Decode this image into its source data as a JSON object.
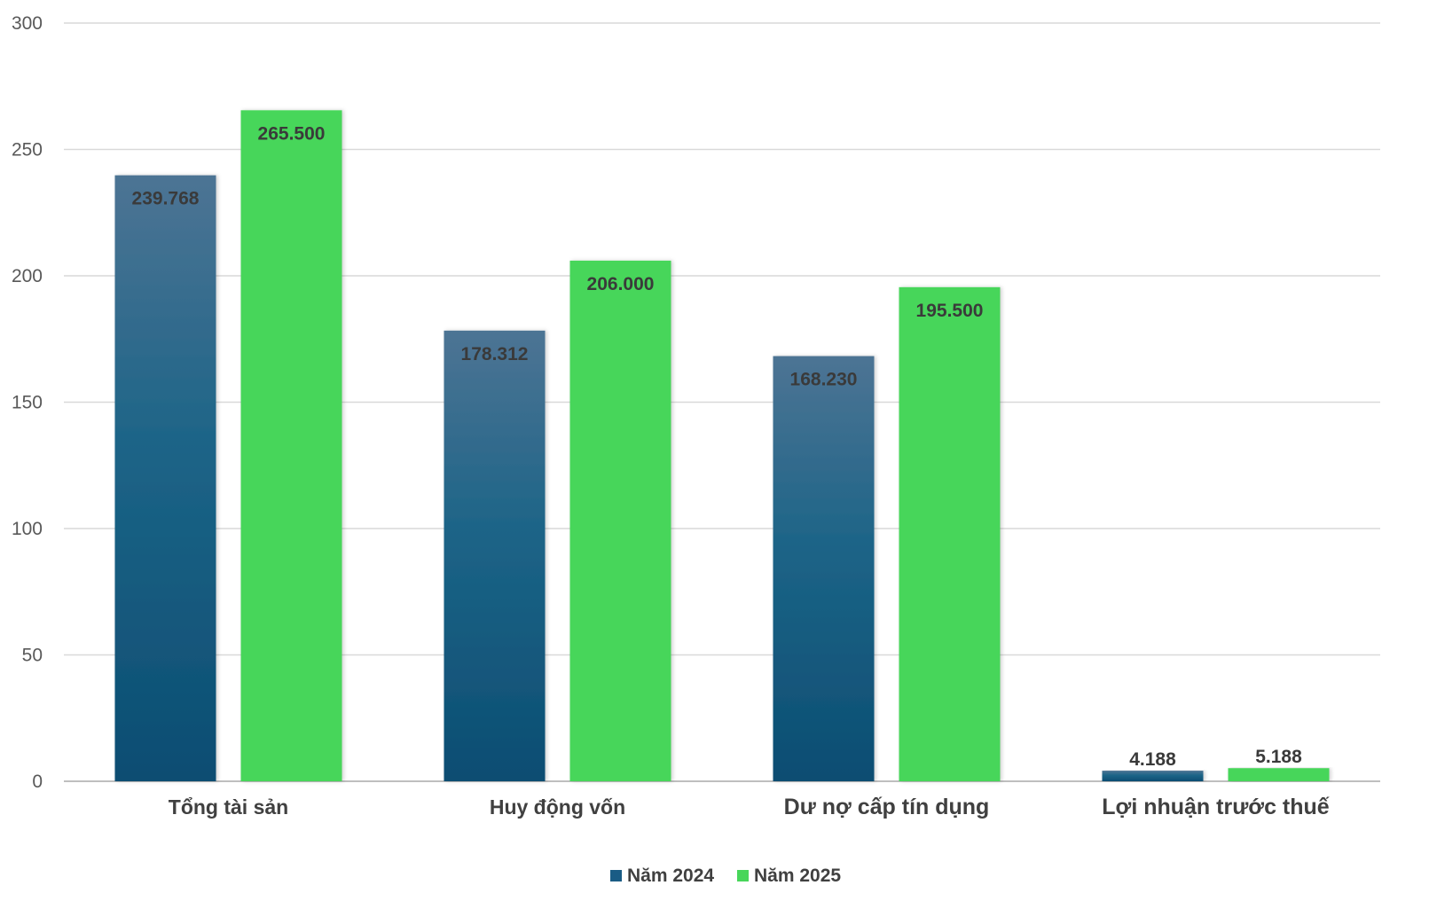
{
  "chart_data": {
    "type": "bar",
    "categories": [
      "Tổng tài sản",
      "Huy động vốn",
      "Dư nợ cấp tín dụng",
      "Lợi nhuận trước thuế"
    ],
    "series": [
      {
        "name": "Năm 2024",
        "values": [
          239.768,
          178.312,
          168.23,
          4.188
        ],
        "labels": [
          "239.768",
          "178.312",
          "168.230",
          "4.188"
        ],
        "color": "#1a5c85"
      },
      {
        "name": "Năm 2025",
        "values": [
          265.5,
          206.0,
          195.5,
          5.188
        ],
        "labels": [
          "265.500",
          "206.000",
          "195.500",
          "5.188"
        ],
        "color": "#47d65a"
      }
    ],
    "yticks": [
      "0",
      "50",
      "100",
      "150",
      "200",
      "250",
      "300"
    ],
    "ylim": [
      0,
      300
    ],
    "grid": true,
    "legend_position": "bottom",
    "title": "",
    "xlabel": "",
    "ylabel": ""
  }
}
